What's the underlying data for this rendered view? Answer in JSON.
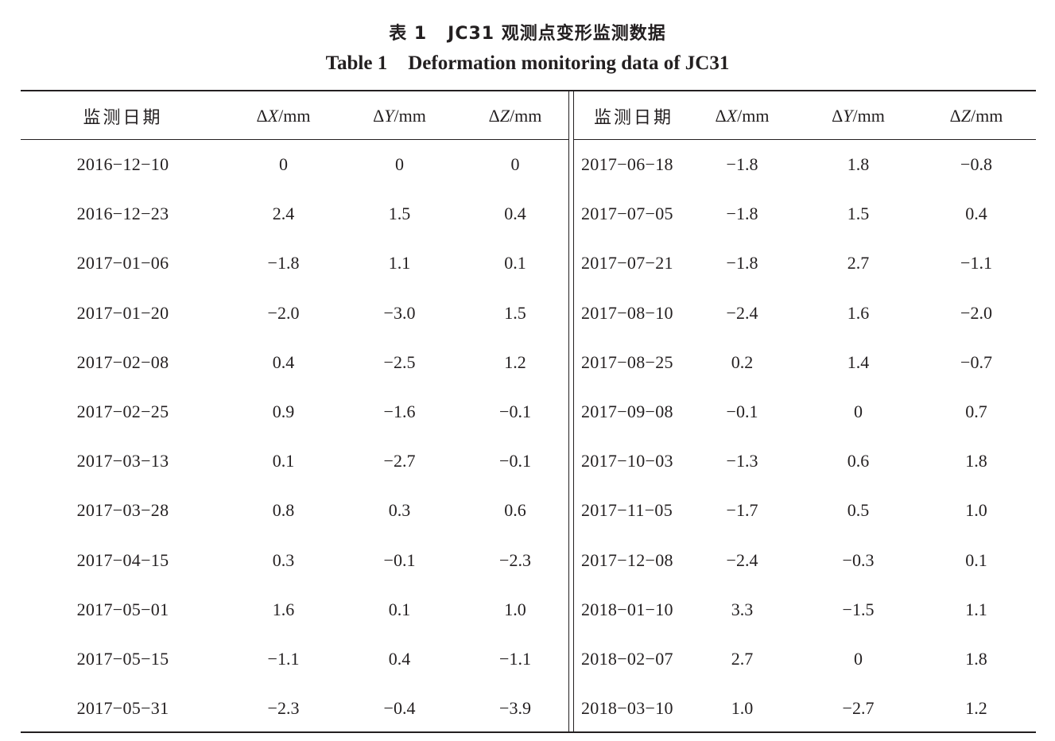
{
  "title": {
    "cn_label": "表 1",
    "cn_text": "JC31 观测点变形监测数据",
    "en_label": "Table 1",
    "en_text": "Deformation monitoring data of JC31"
  },
  "columns": {
    "date": "监测日期",
    "dx_symbol": "Δ",
    "dx_var": "X",
    "dx_unit": "/mm",
    "dy_symbol": "Δ",
    "dy_var": "Y",
    "dy_unit": "/mm",
    "dz_symbol": "Δ",
    "dz_var": "Z",
    "dz_unit": "/mm"
  },
  "left": [
    {
      "date": "2016−12−10",
      "dx": "0",
      "dy": "0",
      "dz": "0"
    },
    {
      "date": "2016−12−23",
      "dx": "2.4",
      "dy": "1.5",
      "dz": "0.4"
    },
    {
      "date": "2017−01−06",
      "dx": "−1.8",
      "dy": "1.1",
      "dz": "0.1"
    },
    {
      "date": "2017−01−20",
      "dx": "−2.0",
      "dy": "−3.0",
      "dz": "1.5"
    },
    {
      "date": "2017−02−08",
      "dx": "0.4",
      "dy": "−2.5",
      "dz": "1.2"
    },
    {
      "date": "2017−02−25",
      "dx": "0.9",
      "dy": "−1.6",
      "dz": "−0.1"
    },
    {
      "date": "2017−03−13",
      "dx": "0.1",
      "dy": "−2.7",
      "dz": "−0.1"
    },
    {
      "date": "2017−03−28",
      "dx": "0.8",
      "dy": "0.3",
      "dz": "0.6"
    },
    {
      "date": "2017−04−15",
      "dx": "0.3",
      "dy": "−0.1",
      "dz": "−2.3"
    },
    {
      "date": "2017−05−01",
      "dx": "1.6",
      "dy": "0.1",
      "dz": "1.0"
    },
    {
      "date": "2017−05−15",
      "dx": "−1.1",
      "dy": "0.4",
      "dz": "−1.1"
    },
    {
      "date": "2017−05−31",
      "dx": "−2.3",
      "dy": "−0.4",
      "dz": "−3.9"
    }
  ],
  "right": [
    {
      "date": "2017−06−18",
      "dx": "−1.8",
      "dy": "1.8",
      "dz": "−0.8"
    },
    {
      "date": "2017−07−05",
      "dx": "−1.8",
      "dy": "1.5",
      "dz": "0.4"
    },
    {
      "date": "2017−07−21",
      "dx": "−1.8",
      "dy": "2.7",
      "dz": "−1.1"
    },
    {
      "date": "2017−08−10",
      "dx": "−2.4",
      "dy": "1.6",
      "dz": "−2.0"
    },
    {
      "date": "2017−08−25",
      "dx": "0.2",
      "dy": "1.4",
      "dz": "−0.7"
    },
    {
      "date": "2017−09−08",
      "dx": "−0.1",
      "dy": "0",
      "dz": "0.7"
    },
    {
      "date": "2017−10−03",
      "dx": "−1.3",
      "dy": "0.6",
      "dz": "1.8"
    },
    {
      "date": "2017−11−05",
      "dx": "−1.7",
      "dy": "0.5",
      "dz": "1.0"
    },
    {
      "date": "2017−12−08",
      "dx": "−2.4",
      "dy": "−0.3",
      "dz": "0.1"
    },
    {
      "date": "2018−01−10",
      "dx": "3.3",
      "dy": "−1.5",
      "dz": "1.1"
    },
    {
      "date": "2018−02−07",
      "dx": "2.7",
      "dy": "0",
      "dz": "1.8"
    },
    {
      "date": "2018−03−10",
      "dx": "1.0",
      "dy": "−2.7",
      "dz": "1.2"
    }
  ]
}
